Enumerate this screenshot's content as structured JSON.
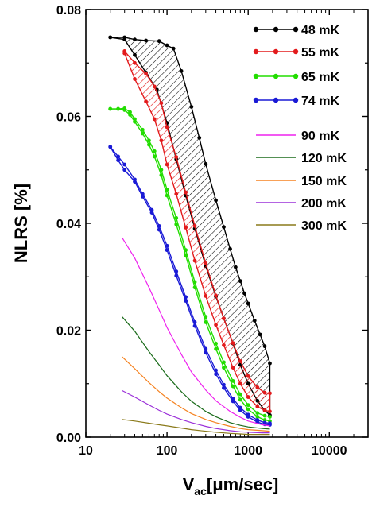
{
  "chart_data": {
    "type": "line",
    "title": "",
    "xlabel_main": "V",
    "xlabel_sub": "ac",
    "xlabel_unit": "[μm/sec]",
    "ylabel": "NLRS [%]",
    "xscale": "log",
    "xlim": [
      10,
      30000
    ],
    "ylim": [
      0,
      0.08
    ],
    "xticks": [
      10,
      100,
      1000,
      10000
    ],
    "xtick_labels": [
      "10",
      "100",
      "1000",
      "10000"
    ],
    "yticks": [
      0,
      0.02,
      0.04,
      0.06,
      0.08
    ],
    "ytick_labels": [
      "0.00",
      "0.02",
      "0.04",
      "0.06",
      "0.08"
    ],
    "grid": false,
    "legend_position": "top-right",
    "series": [
      {
        "name": "48 mK",
        "color": "#000000",
        "markers": true,
        "hatched": true,
        "upper": [
          [
            20,
            0.0748
          ],
          [
            30,
            0.0748
          ],
          [
            40,
            0.0744
          ],
          [
            55,
            0.0742
          ],
          [
            80,
            0.0741
          ],
          [
            100,
            0.0733
          ],
          [
            120,
            0.0727
          ],
          [
            150,
            0.0685
          ],
          [
            200,
            0.0618
          ],
          [
            250,
            0.056
          ],
          [
            300,
            0.0511
          ],
          [
            400,
            0.0443
          ],
          [
            500,
            0.0393
          ],
          [
            600,
            0.0352
          ],
          [
            700,
            0.0318
          ],
          [
            800,
            0.0292
          ],
          [
            900,
            0.0269
          ],
          [
            1000,
            0.025
          ],
          [
            1200,
            0.0218
          ],
          [
            1400,
            0.0192
          ],
          [
            1600,
            0.017
          ],
          [
            1850,
            0.0138
          ]
        ],
        "lower": [
          [
            20,
            0.0748
          ],
          [
            30,
            0.0744
          ],
          [
            40,
            0.0715
          ],
          [
            55,
            0.0682
          ],
          [
            75,
            0.065
          ],
          [
            100,
            0.0588
          ],
          [
            130,
            0.052
          ],
          [
            170,
            0.0452
          ],
          [
            220,
            0.039
          ],
          [
            300,
            0.032
          ],
          [
            400,
            0.0263
          ],
          [
            500,
            0.0222
          ],
          [
            650,
            0.0175
          ],
          [
            800,
            0.0135
          ],
          [
            1000,
            0.01
          ],
          [
            1300,
            0.0068
          ],
          [
            1600,
            0.005
          ],
          [
            1850,
            0.0041
          ]
        ]
      },
      {
        "name": "55 mK",
        "color": "#e31a1c",
        "markers": true,
        "hatched": true,
        "upper": [
          [
            30,
            0.0722
          ],
          [
            40,
            0.07
          ],
          [
            55,
            0.068
          ],
          [
            70,
            0.0656
          ],
          [
            85,
            0.0625
          ],
          [
            100,
            0.058
          ],
          [
            130,
            0.0524
          ],
          [
            170,
            0.0458
          ],
          [
            220,
            0.0395
          ],
          [
            300,
            0.0325
          ],
          [
            400,
            0.0265
          ],
          [
            500,
            0.0222
          ],
          [
            650,
            0.0176
          ],
          [
            800,
            0.0142
          ],
          [
            1000,
            0.0114
          ],
          [
            1300,
            0.0093
          ],
          [
            1600,
            0.0083
          ],
          [
            1850,
            0.0082
          ]
        ],
        "lower": [
          [
            30,
            0.0718
          ],
          [
            40,
            0.067
          ],
          [
            55,
            0.0628
          ],
          [
            70,
            0.0595
          ],
          [
            85,
            0.0555
          ],
          [
            100,
            0.051
          ],
          [
            130,
            0.0455
          ],
          [
            170,
            0.0392
          ],
          [
            220,
            0.033
          ],
          [
            300,
            0.0264
          ],
          [
            400,
            0.021
          ],
          [
            500,
            0.0172
          ],
          [
            650,
            0.013
          ],
          [
            800,
            0.01
          ],
          [
            1000,
            0.0075
          ],
          [
            1300,
            0.0057
          ],
          [
            1600,
            0.005
          ],
          [
            1850,
            0.0048
          ]
        ]
      },
      {
        "name": "65 mK",
        "color": "#22dd00",
        "markers": true,
        "hatched": false,
        "upper": [
          [
            20,
            0.0614
          ],
          [
            25,
            0.0614
          ],
          [
            30,
            0.0615
          ],
          [
            35,
            0.0608
          ],
          [
            40,
            0.0595
          ],
          [
            50,
            0.0575
          ],
          [
            60,
            0.0555
          ],
          [
            70,
            0.0535
          ],
          [
            85,
            0.05
          ],
          [
            100,
            0.0463
          ],
          [
            130,
            0.041
          ],
          [
            170,
            0.035
          ],
          [
            220,
            0.029
          ],
          [
            300,
            0.0225
          ],
          [
            400,
            0.0175
          ],
          [
            500,
            0.014
          ],
          [
            650,
            0.0105
          ],
          [
            800,
            0.008
          ],
          [
            1000,
            0.006
          ],
          [
            1300,
            0.0045
          ],
          [
            1600,
            0.004
          ],
          [
            1850,
            0.0038
          ]
        ],
        "lower": [
          [
            20,
            0.0614
          ],
          [
            25,
            0.0614
          ],
          [
            30,
            0.0612
          ],
          [
            35,
            0.0603
          ],
          [
            40,
            0.059
          ],
          [
            50,
            0.0568
          ],
          [
            60,
            0.0547
          ],
          [
            70,
            0.0525
          ],
          [
            85,
            0.049
          ],
          [
            100,
            0.0452
          ],
          [
            130,
            0.0398
          ],
          [
            170,
            0.034
          ],
          [
            220,
            0.028
          ],
          [
            300,
            0.0215
          ],
          [
            400,
            0.0165
          ],
          [
            500,
            0.013
          ],
          [
            650,
            0.0095
          ],
          [
            800,
            0.007
          ],
          [
            1000,
            0.0052
          ],
          [
            1300,
            0.0038
          ],
          [
            1600,
            0.0032
          ],
          [
            1850,
            0.003
          ]
        ]
      },
      {
        "name": "74 mK",
        "color": "#1a1ad6",
        "markers": true,
        "hatched": false,
        "upper": [
          [
            20,
            0.0543
          ],
          [
            25,
            0.0525
          ],
          [
            30,
            0.051
          ],
          [
            40,
            0.0482
          ],
          [
            50,
            0.0455
          ],
          [
            65,
            0.0425
          ],
          [
            80,
            0.0395
          ],
          [
            100,
            0.0358
          ],
          [
            130,
            0.031
          ],
          [
            170,
            0.0262
          ],
          [
            220,
            0.0215
          ],
          [
            300,
            0.0165
          ],
          [
            400,
            0.0125
          ],
          [
            500,
            0.0098
          ],
          [
            650,
            0.0072
          ],
          [
            800,
            0.0055
          ],
          [
            1000,
            0.0042
          ],
          [
            1300,
            0.0032
          ],
          [
            1600,
            0.0027
          ],
          [
            1850,
            0.0026
          ]
        ],
        "lower": [
          [
            20,
            0.0543
          ],
          [
            25,
            0.0518
          ],
          [
            30,
            0.05
          ],
          [
            40,
            0.0478
          ],
          [
            50,
            0.045
          ],
          [
            65,
            0.042
          ],
          [
            80,
            0.0388
          ],
          [
            100,
            0.035
          ],
          [
            130,
            0.0302
          ],
          [
            170,
            0.0255
          ],
          [
            220,
            0.0208
          ],
          [
            300,
            0.0158
          ],
          [
            400,
            0.0118
          ],
          [
            500,
            0.0092
          ],
          [
            650,
            0.0067
          ],
          [
            800,
            0.005
          ],
          [
            1000,
            0.0038
          ],
          [
            1300,
            0.0028
          ],
          [
            1600,
            0.0024
          ],
          [
            1850,
            0.0023
          ]
        ]
      },
      {
        "name": "90 mK",
        "color": "#ee22ee",
        "markers": false,
        "points": [
          [
            28,
            0.0373
          ],
          [
            40,
            0.0335
          ],
          [
            60,
            0.028
          ],
          [
            80,
            0.0238
          ],
          [
            100,
            0.0205
          ],
          [
            150,
            0.0155
          ],
          [
            200,
            0.0122
          ],
          [
            300,
            0.0088
          ],
          [
            400,
            0.0068
          ],
          [
            600,
            0.0048
          ],
          [
            800,
            0.0037
          ],
          [
            1000,
            0.003
          ],
          [
            1500,
            0.0023
          ],
          [
            1850,
            0.0021
          ]
        ]
      },
      {
        "name": "120 mK",
        "color": "#1a6b1a",
        "markers": false,
        "points": [
          [
            28,
            0.0225
          ],
          [
            40,
            0.0198
          ],
          [
            60,
            0.016
          ],
          [
            80,
            0.0135
          ],
          [
            100,
            0.0115
          ],
          [
            150,
            0.0085
          ],
          [
            200,
            0.0067
          ],
          [
            300,
            0.0048
          ],
          [
            400,
            0.0038
          ],
          [
            600,
            0.0027
          ],
          [
            800,
            0.0022
          ],
          [
            1000,
            0.0019
          ],
          [
            1500,
            0.0016
          ],
          [
            1850,
            0.0015
          ]
        ]
      },
      {
        "name": "150 mK",
        "color": "#f58220",
        "markers": false,
        "points": [
          [
            28,
            0.015
          ],
          [
            40,
            0.0128
          ],
          [
            60,
            0.0102
          ],
          [
            80,
            0.0085
          ],
          [
            100,
            0.0073
          ],
          [
            150,
            0.0055
          ],
          [
            200,
            0.0044
          ],
          [
            300,
            0.0033
          ],
          [
            400,
            0.0027
          ],
          [
            600,
            0.002
          ],
          [
            800,
            0.0016
          ],
          [
            1000,
            0.0014
          ],
          [
            1500,
            0.0012
          ],
          [
            1850,
            0.0011
          ]
        ]
      },
      {
        "name": "200 mK",
        "color": "#9b30d9",
        "markers": false,
        "points": [
          [
            28,
            0.0087
          ],
          [
            40,
            0.0075
          ],
          [
            60,
            0.006
          ],
          [
            80,
            0.005
          ],
          [
            100,
            0.0043
          ],
          [
            150,
            0.0033
          ],
          [
            200,
            0.0027
          ],
          [
            300,
            0.002
          ],
          [
            400,
            0.0016
          ],
          [
            600,
            0.0012
          ],
          [
            800,
            0.001
          ],
          [
            1000,
            0.0009
          ],
          [
            1500,
            0.0008
          ],
          [
            1850,
            0.0008
          ]
        ]
      },
      {
        "name": "300 mK",
        "color": "#8a7a1a",
        "markers": false,
        "points": [
          [
            28,
            0.0033
          ],
          [
            40,
            0.003
          ],
          [
            60,
            0.0026
          ],
          [
            80,
            0.0023
          ],
          [
            100,
            0.0021
          ],
          [
            150,
            0.0017
          ],
          [
            200,
            0.0014
          ],
          [
            300,
            0.0011
          ],
          [
            400,
            0.0009
          ],
          [
            600,
            0.0007
          ],
          [
            800,
            0.0006
          ],
          [
            1000,
            0.0005
          ],
          [
            1500,
            0.0005
          ],
          [
            1850,
            0.0005
          ]
        ]
      }
    ]
  }
}
